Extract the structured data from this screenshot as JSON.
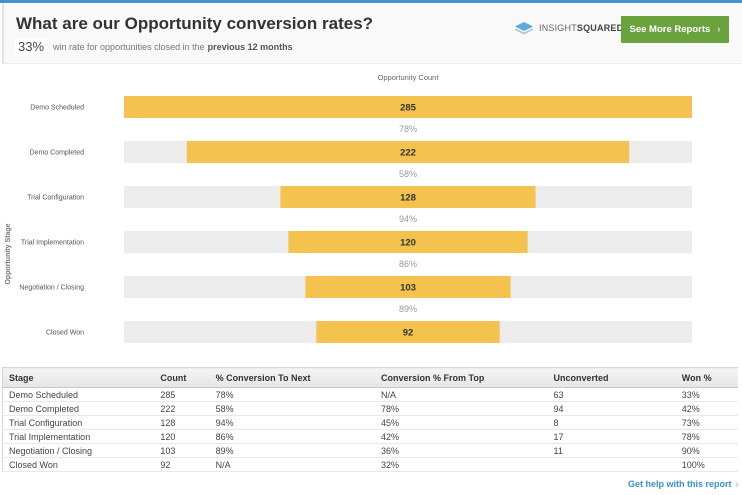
{
  "header": {
    "title": "What are our Opportunity conversion rates?",
    "win_rate": "33%",
    "subtitle_text": "win rate for opportunities closed in the",
    "subtitle_period": "previous 12 months",
    "brand_light": "INSIGHT",
    "brand_bold": "SQUARED",
    "more_reports_label": "See More Reports",
    "more_reports_icon": "chevron-right-icon"
  },
  "chart_data": {
    "type": "bar",
    "subtype": "funnel",
    "title": "Opportunity Count",
    "xlabel": "Opportunity Count",
    "ylabel": "Opportunity Stage",
    "categories": [
      "Demo Scheduled",
      "Demo Completed",
      "Trial Configuration",
      "Trial Implementation",
      "Negotiation / Closing",
      "Closed Won"
    ],
    "values": [
      285,
      222,
      128,
      120,
      103,
      92
    ],
    "conversion_labels": [
      "78%",
      "58%",
      "94%",
      "86%",
      "89%"
    ],
    "xlim": [
      0,
      285
    ],
    "colors": {
      "bar": "#f3c24f",
      "track": "#ececec"
    }
  },
  "table": {
    "columns": [
      "Stage",
      "Count",
      "% Conversion To Next",
      "Conversion % From Top",
      "Unconverted",
      "Won %"
    ],
    "rows": [
      [
        "Demo Scheduled",
        "285",
        "78%",
        "N/A",
        "63",
        "33%"
      ],
      [
        "Demo Completed",
        "222",
        "58%",
        "78%",
        "94",
        "42%"
      ],
      [
        "Trial Configuration",
        "128",
        "94%",
        "45%",
        "8",
        "73%"
      ],
      [
        "Trial Implementation",
        "120",
        "86%",
        "42%",
        "17",
        "78%"
      ],
      [
        "Negotiation / Closing",
        "103",
        "89%",
        "36%",
        "11",
        "90%"
      ],
      [
        "Closed Won",
        "92",
        "N/A",
        "32%",
        "",
        "100%"
      ]
    ]
  },
  "footer": {
    "help_label": "Get help with this report",
    "help_icon": "chevron-right-icon"
  }
}
